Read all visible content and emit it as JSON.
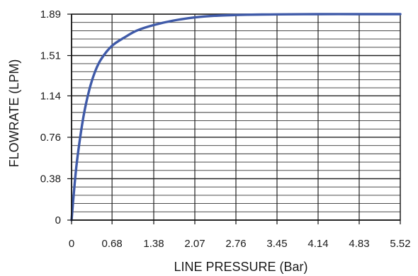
{
  "chart_data": {
    "type": "line",
    "xlabel": "LINE PRESSURE (Bar)",
    "ylabel": "FLOWRATE (LPM)",
    "x_ticks": [
      0,
      0.68,
      1.38,
      2.07,
      2.76,
      3.45,
      4.14,
      4.83,
      5.52
    ],
    "y_ticks": [
      0,
      0.38,
      0.76,
      1.14,
      1.51,
      1.89
    ],
    "x_tick_labels": [
      "0",
      "0.68",
      "1.38",
      "2.07",
      "2.76",
      "3.45",
      "4.14",
      "4.83",
      "5.52"
    ],
    "y_tick_labels": [
      "0",
      "0.38",
      "0.76",
      "1.14",
      "1.51",
      "1.89"
    ],
    "xlim": [
      0,
      5.52
    ],
    "ylim": [
      0,
      1.89
    ],
    "grid": true,
    "series": [
      {
        "color": "#3f5aa8",
        "x": [
          0,
          0.05,
          0.1,
          0.2,
          0.3,
          0.4,
          0.5,
          0.68,
          0.9,
          1.1,
          1.38,
          1.7,
          2.07,
          2.4,
          2.76,
          3.1,
          3.45,
          4.14,
          4.83,
          5.52
        ],
        "y": [
          0,
          0.32,
          0.58,
          0.95,
          1.2,
          1.37,
          1.48,
          1.6,
          1.68,
          1.74,
          1.79,
          1.83,
          1.86,
          1.875,
          1.882,
          1.886,
          1.888,
          1.89,
          1.89,
          1.89
        ]
      }
    ]
  }
}
